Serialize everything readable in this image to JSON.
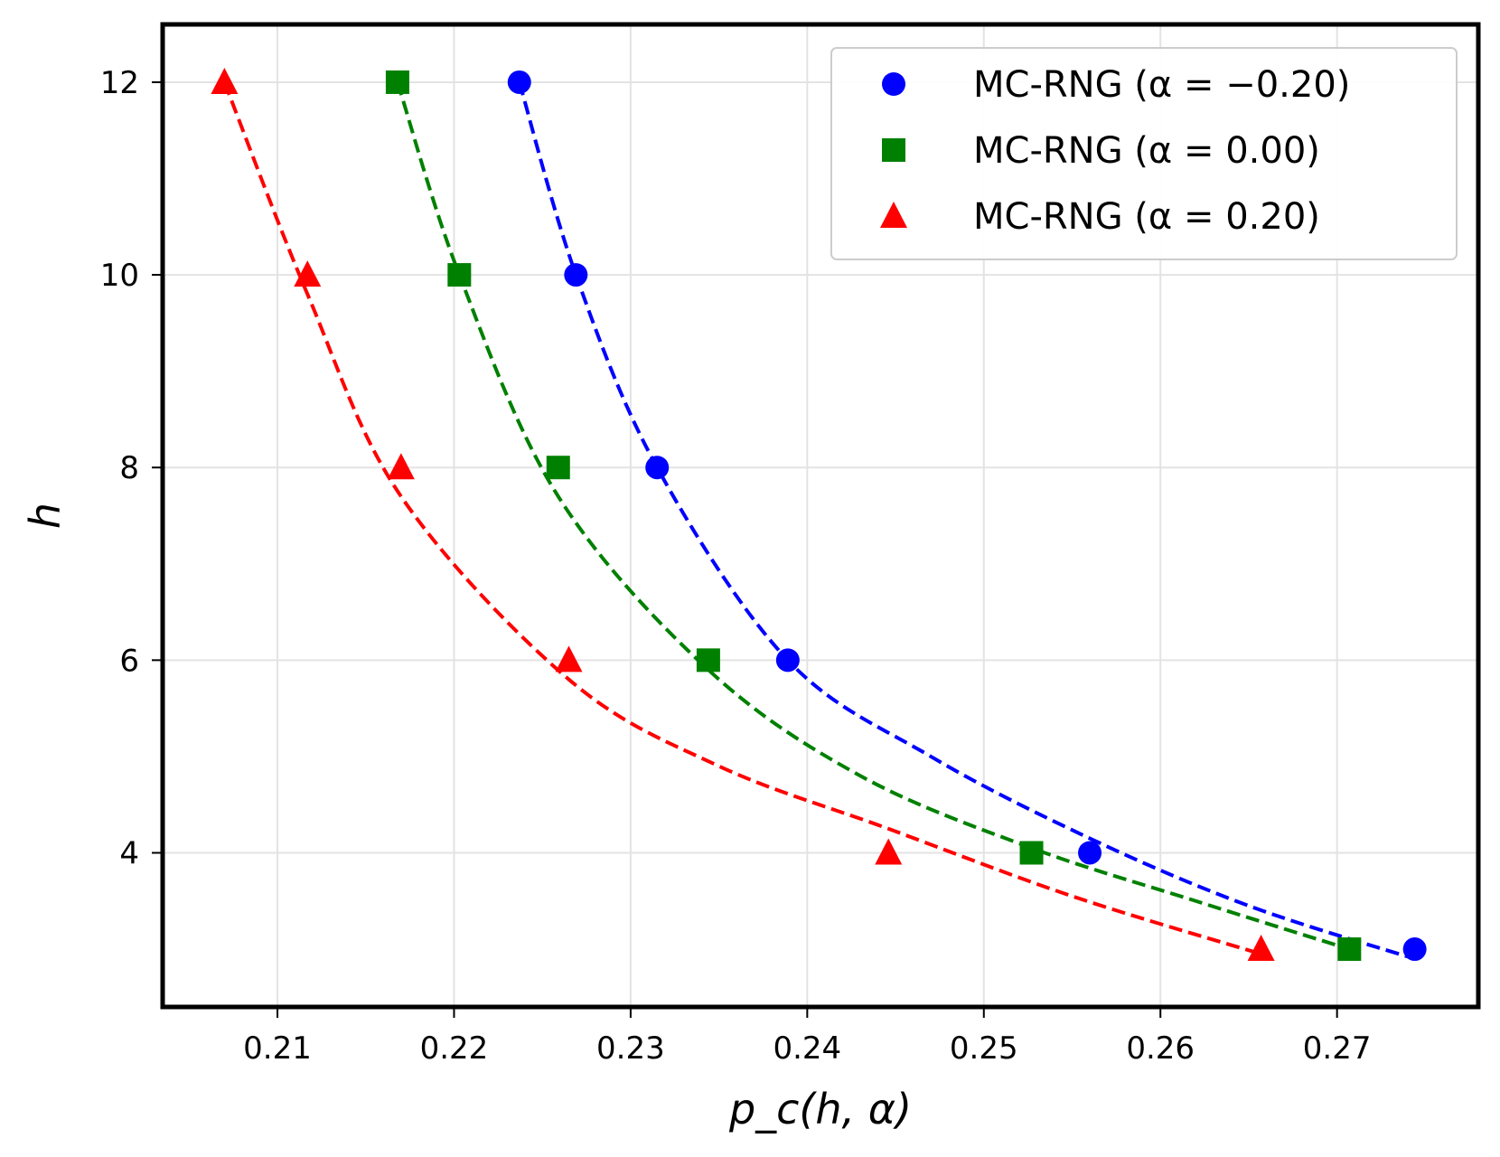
{
  "chart_data": {
    "type": "scatter",
    "title": "",
    "xlabel": "p_c(h, α)",
    "ylabel": "h",
    "xlim": [
      0.2035,
      0.278
    ],
    "ylim": [
      2.4,
      12.6
    ],
    "xticks": [
      0.21,
      0.22,
      0.23,
      0.24,
      0.25,
      0.26,
      0.27
    ],
    "xtick_labels": [
      "0.21",
      "0.22",
      "0.23",
      "0.24",
      "0.25",
      "0.26",
      "0.27"
    ],
    "yticks": [
      4,
      6,
      8,
      10,
      12
    ],
    "ytick_labels": [
      "4",
      "6",
      "8",
      "10",
      "12"
    ],
    "grid": true,
    "legend_position": "top-right",
    "series": [
      {
        "name": "MC-RNG (α = −0.20)",
        "color": "#0000ff",
        "marker": "circle",
        "line_style": "dashed",
        "x": [
          0.2744,
          0.256,
          0.2389,
          0.2315,
          0.2269,
          0.2237
        ],
        "y": [
          3,
          4,
          6,
          8,
          10,
          12
        ]
      },
      {
        "name": "MC-RNG (α = 0.00)",
        "color": "#008000",
        "marker": "square",
        "line_style": "dashed",
        "x": [
          0.2707,
          0.2527,
          0.2344,
          0.2259,
          0.2203,
          0.2168
        ],
        "y": [
          3,
          4,
          6,
          8,
          10,
          12
        ]
      },
      {
        "name": "MC-RNG (α = 0.20)",
        "color": "#ff0000",
        "marker": "triangle",
        "line_style": "dashed",
        "x": [
          0.2657,
          0.2446,
          0.2265,
          0.217,
          0.2117,
          0.207
        ],
        "y": [
          3,
          4,
          6,
          8,
          10,
          12
        ]
      }
    ],
    "fit_curves": [
      {
        "series": "MC-RNG (α = −0.20)",
        "color": "#0000ff",
        "x": [
          0.2237,
          0.2269,
          0.2315,
          0.2389,
          0.247,
          0.256,
          0.265,
          0.2744
        ],
        "y": [
          12,
          10,
          8,
          6,
          5.0,
          4.15,
          3.45,
          2.9
        ]
      },
      {
        "series": "MC-RNG (α = 0.00)",
        "color": "#008000",
        "x": [
          0.2168,
          0.2203,
          0.2259,
          0.2344,
          0.243,
          0.2527,
          0.262,
          0.2707
        ],
        "y": [
          12,
          10,
          7.7,
          5.9,
          4.8,
          4.05,
          3.5,
          3.0
        ]
      },
      {
        "series": "MC-RNG (α = 0.20)",
        "color": "#ff0000",
        "x": [
          0.207,
          0.2117,
          0.217,
          0.2265,
          0.235,
          0.2446,
          0.255,
          0.2657
        ],
        "y": [
          12,
          9.8,
          7.7,
          5.8,
          4.9,
          4.25,
          3.55,
          2.95
        ]
      }
    ]
  }
}
